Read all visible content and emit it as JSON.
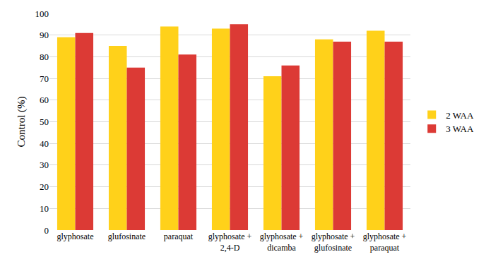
{
  "chart_data": {
    "type": "bar",
    "y_label": "Control (%)",
    "categories": [
      "glyphosate",
      "glufosinate",
      "paraquat",
      "glyphosate +\n2,4-D",
      "glyphosate +\ndicamba",
      "glyphosate +\nglufosinate",
      "glyphosate +\nparaquat"
    ],
    "series": [
      {
        "name": "2 WAA",
        "color": "#FFD11A",
        "values": [
          89,
          85,
          94,
          93,
          71,
          88,
          92
        ]
      },
      {
        "name": "3 WAA",
        "color": "#DC3A35",
        "values": [
          91,
          75,
          81,
          95,
          76,
          87,
          87
        ]
      }
    ],
    "ylim": [
      0,
      100
    ],
    "yticks": [
      0,
      10,
      20,
      30,
      40,
      50,
      60,
      70,
      80,
      90,
      100
    ],
    "grid": true,
    "legend": "right"
  }
}
